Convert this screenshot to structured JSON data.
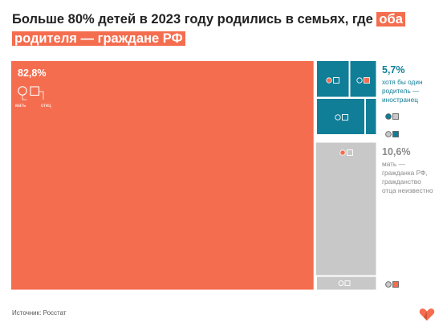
{
  "title": {
    "part1": "Больше 80% детей в 2023 году родились в семьях, где",
    "highlight1": "оба",
    "highlight2": "родителя — граждане РФ"
  },
  "legend": {
    "mother": "мать",
    "father": "отец"
  },
  "labels": {
    "both_value": "82,8%",
    "one_foreign_value": "5,7%",
    "one_foreign_text": [
      "хотя бы один",
      "родитель —",
      "иностранец"
    ],
    "father_unknown_value": "10,6%",
    "father_unknown_text": [
      "мать —",
      "гражданка РФ,",
      "гражданство",
      "отца неизвестно"
    ]
  },
  "source": "Источник: Росстат",
  "colors": {
    "citizen": "#f46d4f",
    "foreign": "#117e98",
    "unknown": "#c8c8c8",
    "foreign_text": "#117e98",
    "unknown_text": "#8a8a8a"
  },
  "chart_data": {
    "type": "treemap",
    "categories": [
      "Оба родителя — граждане РФ",
      "Хотя бы один родитель — иностранец",
      "Мать — гражданка РФ, гражданство отца неизвестно"
    ],
    "values": [
      82.8,
      5.7,
      10.6
    ]
  }
}
